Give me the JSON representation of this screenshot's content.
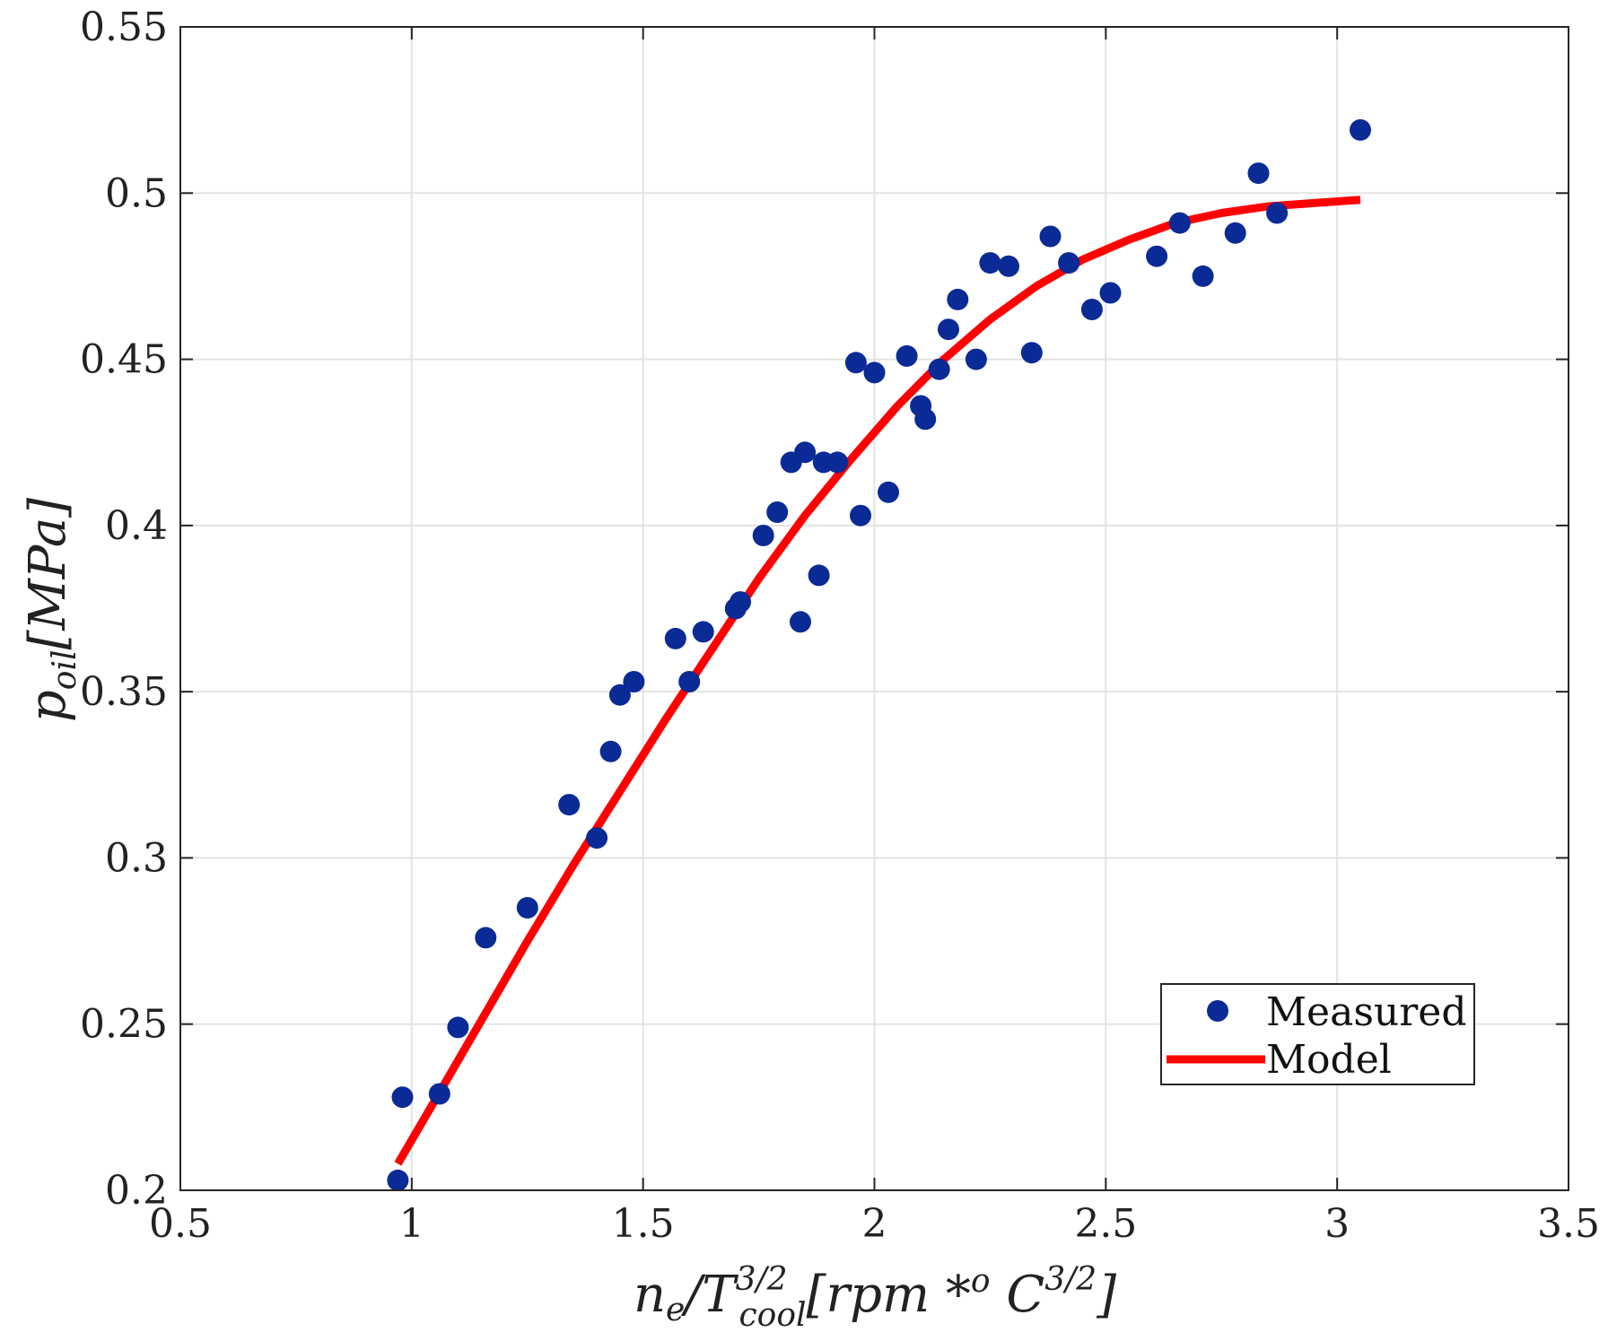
{
  "chart_data": {
    "type": "scatter",
    "title": "",
    "xlabel": "n_e/T_cool^{3/2}[rpm *^o C^{3/2}]",
    "xlabel_parts": {
      "base": "n",
      "base_sub": "e",
      "slash": "/T",
      "t_sup": "3/2",
      "t_sub": "cool",
      "unit_open": "[rpm *",
      "unit_o": "o",
      "unit_c": " C",
      "unit_sup": "3/2",
      "unit_close": "]"
    },
    "ylabel": "p_oil[MPa]",
    "ylabel_parts": {
      "base": "p",
      "sub": "oil",
      "unit": "[MPa]"
    },
    "xlim": [
      0.5,
      3.5
    ],
    "ylim": [
      0.2,
      0.55
    ],
    "grid": true,
    "xticks": [
      0.5,
      1,
      1.5,
      2,
      2.5,
      3,
      3.5
    ],
    "xtick_labels": [
      "0.5",
      "1",
      "1.5",
      "2",
      "2.5",
      "3",
      "3.5"
    ],
    "yticks": [
      0.2,
      0.25,
      0.3,
      0.35,
      0.4,
      0.45,
      0.5,
      0.55
    ],
    "ytick_labels": [
      "0.2",
      "0.25",
      "0.3",
      "0.35",
      "0.4",
      "0.45",
      "0.5",
      "0.55"
    ],
    "legend_position": "bottom-right",
    "series": [
      {
        "name": "Measured",
        "type": "scatter",
        "color": "#0a2a96",
        "points": [
          [
            0.97,
            0.203
          ],
          [
            0.98,
            0.228
          ],
          [
            1.06,
            0.229
          ],
          [
            1.1,
            0.249
          ],
          [
            1.16,
            0.276
          ],
          [
            1.25,
            0.285
          ],
          [
            1.34,
            0.316
          ],
          [
            1.4,
            0.306
          ],
          [
            1.43,
            0.332
          ],
          [
            1.45,
            0.349
          ],
          [
            1.48,
            0.353
          ],
          [
            1.57,
            0.366
          ],
          [
            1.6,
            0.353
          ],
          [
            1.63,
            0.368
          ],
          [
            1.7,
            0.375
          ],
          [
            1.71,
            0.377
          ],
          [
            1.76,
            0.397
          ],
          [
            1.79,
            0.404
          ],
          [
            1.82,
            0.419
          ],
          [
            1.84,
            0.371
          ],
          [
            1.85,
            0.422
          ],
          [
            1.88,
            0.385
          ],
          [
            1.89,
            0.419
          ],
          [
            1.92,
            0.419
          ],
          [
            1.96,
            0.449
          ],
          [
            1.97,
            0.403
          ],
          [
            2.0,
            0.446
          ],
          [
            2.03,
            0.41
          ],
          [
            2.07,
            0.451
          ],
          [
            2.1,
            0.436
          ],
          [
            2.11,
            0.432
          ],
          [
            2.14,
            0.447
          ],
          [
            2.16,
            0.459
          ],
          [
            2.18,
            0.468
          ],
          [
            2.22,
            0.45
          ],
          [
            2.25,
            0.479
          ],
          [
            2.29,
            0.478
          ],
          [
            2.34,
            0.452
          ],
          [
            2.38,
            0.487
          ],
          [
            2.42,
            0.479
          ],
          [
            2.47,
            0.465
          ],
          [
            2.51,
            0.47
          ],
          [
            2.61,
            0.481
          ],
          [
            2.66,
            0.491
          ],
          [
            2.71,
            0.475
          ],
          [
            2.78,
            0.488
          ],
          [
            2.83,
            0.506
          ],
          [
            2.87,
            0.494
          ],
          [
            3.05,
            0.519
          ]
        ]
      },
      {
        "name": "Model",
        "type": "line",
        "color": "#ff0000",
        "points": [
          [
            0.97,
            0.208
          ],
          [
            1.05,
            0.227
          ],
          [
            1.15,
            0.251
          ],
          [
            1.25,
            0.275
          ],
          [
            1.35,
            0.298
          ],
          [
            1.45,
            0.32
          ],
          [
            1.55,
            0.342
          ],
          [
            1.65,
            0.363
          ],
          [
            1.75,
            0.384
          ],
          [
            1.85,
            0.403
          ],
          [
            1.95,
            0.42
          ],
          [
            2.05,
            0.436
          ],
          [
            2.15,
            0.45
          ],
          [
            2.25,
            0.462
          ],
          [
            2.35,
            0.472
          ],
          [
            2.45,
            0.48
          ],
          [
            2.55,
            0.486
          ],
          [
            2.65,
            0.491
          ],
          [
            2.75,
            0.494
          ],
          [
            2.85,
            0.496
          ],
          [
            2.95,
            0.497
          ],
          [
            3.05,
            0.498
          ]
        ]
      }
    ]
  }
}
